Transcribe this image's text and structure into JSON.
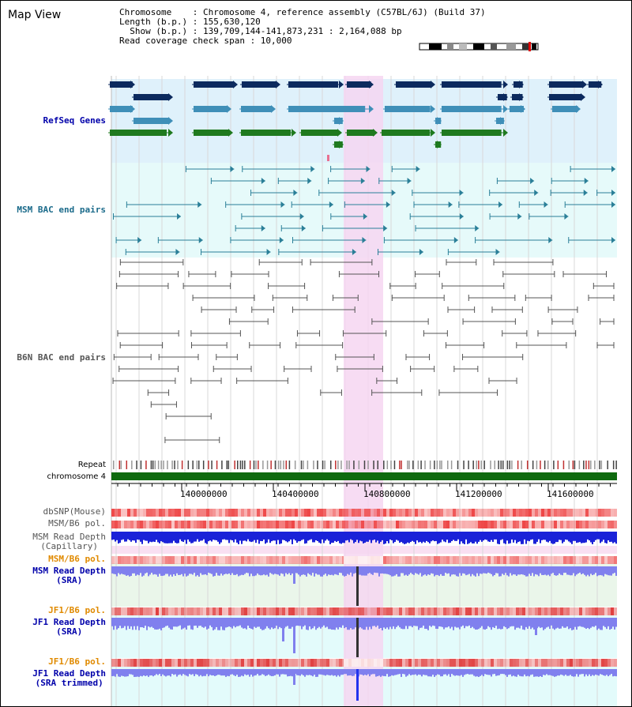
{
  "title": "Map View",
  "header": {
    "chromosome_line": "Chromosome    : Chromosome 4, reference assembly (C57BL/6J) (Build 37)",
    "length_line": "Length (b.p.) : 155,630,120",
    "show_line": "  Show (b.p.) : 139,709,144-141,873,231 : 2,164,088 bp",
    "coverage_line": "Read coverage check span : 10,000"
  },
  "tracks": {
    "refseq": "RefSeq Genes",
    "msm_bac": "MSM BAC end pairs",
    "b6n_bac": "B6N BAC end pairs",
    "repeat": "Repeat",
    "chromosome": "chromosome 4",
    "dbsnp": "dbSNP(Mouse)",
    "msm_b6_pol_1": "MSM/B6 pol.",
    "msm_depth_cap_1": "MSM Read Depth",
    "msm_depth_cap_2": "(Capillary)",
    "msm_b6_pol_2": "MSM/B6 pol.",
    "msm_depth_sra_1": "MSM Read Depth",
    "msm_depth_sra_2": "(SRA)",
    "jf1_b6_pol_1": "JF1/B6 pol.",
    "jf1_depth_sra_1": "JF1 Read Depth",
    "jf1_depth_sra_2": "(SRA)",
    "jf1_b6_pol_2": "JF1/B6 pol.",
    "jf1_depth_trim_1": "JF1 Read Depth",
    "jf1_depth_trim_2": "(SRA trimmed)"
  },
  "axis": {
    "ticks": [
      "140000000",
      "140400000",
      "140800000",
      "141200000",
      "141600000"
    ]
  },
  "colors": {
    "refseq_bg": "#dff1fb",
    "msm_bg": "#e6fafa",
    "highlight": "#f6d6f1",
    "gene_dark": "#0c2a5e",
    "gene_mid": "#3f8fb8",
    "gene_green": "#1f7a1f",
    "msm_line": "#2a7f98",
    "b6n_line": "#555555",
    "chrom_bar": "#0f6a0f",
    "depth_blue": "#1a22d8",
    "depth_light": "#8080ee",
    "snp_red": "#ee4444",
    "label_blue": "#0000aa",
    "label_teal": "#1a6a8a",
    "label_gray": "#555555",
    "label_orange": "#e08a00"
  }
}
